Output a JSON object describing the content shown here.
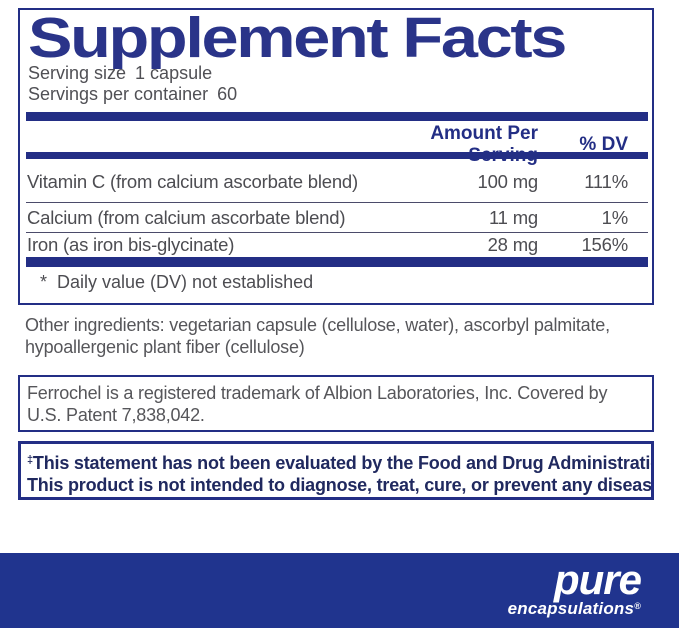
{
  "label": {
    "title": "Supplement Facts",
    "serving_size_label": "Serving size",
    "serving_size_value": "1 capsule",
    "servings_per_container_label": "Servings per container",
    "servings_per_container_value": "60",
    "columns": {
      "amount": "Amount Per Serving",
      "dv": "% DV"
    },
    "rows": [
      {
        "name": "Vitamin C (from calcium ascorbate blend)",
        "amount": "100 mg",
        "dv": "111%"
      },
      {
        "name": "Calcium (from calcium ascorbate blend)",
        "amount": "11 mg",
        "dv": "1%"
      },
      {
        "name": "Iron (as iron bis-glycinate)",
        "amount": "28 mg",
        "dv": "156%"
      }
    ],
    "footnote_mark": "*",
    "footnote_text": "Daily value (DV) not established"
  },
  "other_ingredients": "Other ingredients: vegetarian capsule (cellulose, water), ascorbyl palmitate, hypoallergenic plant fiber (cellulose)",
  "trademark_notice": "Ferrochel is a registered trademark of Albion Laboratories, Inc. Covered by U.S. Patent 7,838,042.",
  "fda_disclaimer": {
    "dagger": "‡",
    "line1": "This statement has not been evaluated by the Food and Drug Administration.",
    "line2": "This product is not intended to diagnose, treat, cure, or prevent any disease."
  },
  "brand": {
    "name": "pure",
    "sub": "encapsulations",
    "registered_mark": "®"
  },
  "colors": {
    "navy": "#232e85",
    "band_navy": "#20348e",
    "text_gray": "#4d4d52"
  }
}
